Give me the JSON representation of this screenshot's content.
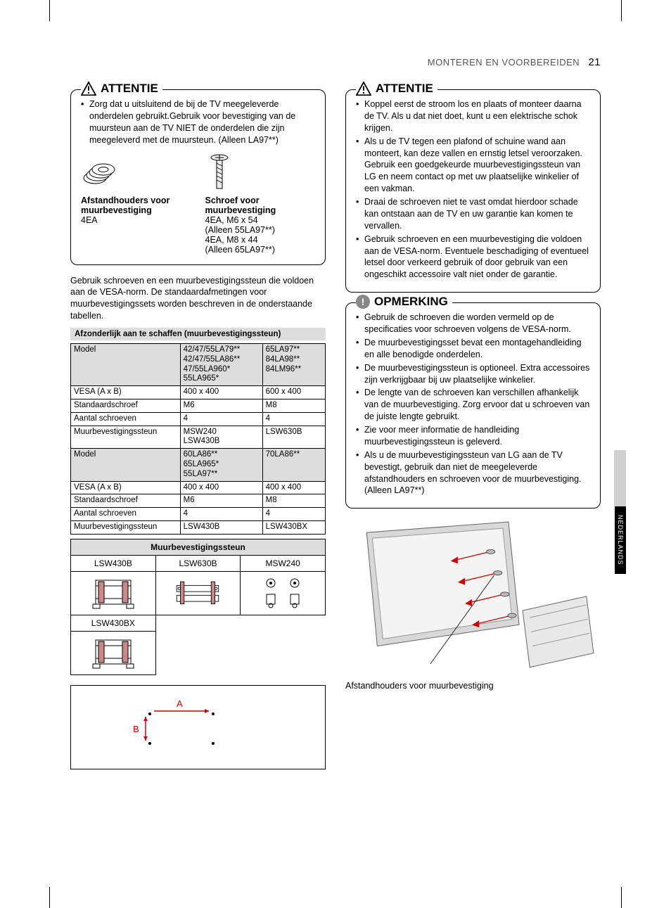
{
  "header": {
    "section": "MONTEREN EN VOORBEREIDEN",
    "page": "21"
  },
  "side_tab": "NEDERLANDS",
  "attentie1": {
    "title": "ATTENTIE",
    "items": [
      "Zorg dat u uitsluitend de bij de TV meegeleverde onderdelen gebruikt.Gebruik voor bevestiging van de muursteun aan de TV NIET de onderdelen die zijn meegeleverd met de muursteun. (Alleen LA97**)"
    ],
    "part1_label": "Afstandhouders voor muurbevestiging",
    "part1_qty": "4EA",
    "part2_label": "Schroef voor muurbevestiging",
    "part2_line1": "4EA, M6 x 54",
    "part2_line2": "(Alleen 55LA97**)",
    "part2_line3": "4EA, M8 x 44",
    "part2_line4": "(Alleen 65LA97**)"
  },
  "para1": "Gebruik schroeven en een muurbevestigingssteun die voldoen aan de VESA-norm. De standaardafmetingen voor muurbevestigingssets worden beschreven in de onderstaande tabellen.",
  "greybar": "Afzonderlijk aan te schaffen (muurbevestigingssteun)",
  "spec_table": {
    "rows": [
      [
        "Model",
        "42/47/55LA79**\n42/47/55LA86**\n47/55LA960*\n55LA965*",
        "65LA97**\n84LA98**\n84LM96**"
      ],
      [
        "VESA (A x B)",
        "400 x 400",
        "600 x 400"
      ],
      [
        "Standaardschroef",
        "M6",
        "M8"
      ],
      [
        "Aantal schroeven",
        "4",
        "4"
      ],
      [
        "Muurbevestigingssteun",
        "MSW240\nLSW430B",
        "LSW630B"
      ],
      [
        "Model",
        "60LA86**\n65LA965*\n55LA97**",
        "70LA86**"
      ],
      [
        "VESA (A x B)",
        "400 x 400",
        "400 x 400"
      ],
      [
        "Standaardschroef",
        "M6",
        "M8"
      ],
      [
        "Aantal schroeven",
        "4",
        "4"
      ],
      [
        "Muurbevestigingssteun",
        "LSW430B",
        "LSW430BX"
      ]
    ],
    "hdr_rows": [
      0,
      5
    ]
  },
  "bracket_table": {
    "title": "Muurbevestigingssteun",
    "cols": [
      "LSW430B",
      "LSW630B",
      "MSW240"
    ],
    "row2": [
      "LSW430BX",
      "",
      ""
    ]
  },
  "ab": {
    "a": "A",
    "b": "B"
  },
  "attentie2": {
    "title": "ATTENTIE",
    "items": [
      "Koppel eerst de stroom los en plaats of monteer daarna de TV. Als u dat niet doet, kunt u een elektrische schok krijgen.",
      "Als u de TV tegen een plafond of schuine wand aan monteert, kan deze vallen en ernstig letsel veroorzaken.\nGebruik een goedgekeurde muurbevestigingssteun van LG en neem contact op met uw plaatselijke winkelier of een vakman.",
      "Draai de schroeven niet te vast omdat hierdoor schade kan ontstaan aan de TV en uw garantie kan komen te vervallen.",
      "Gebruik schroeven en een muurbevestiging die voldoen aan de VESA-norm. Eventuele beschadiging of eventueel letsel door verkeerd gebruik of door gebruik van een ongeschikt accessoire valt niet onder de garantie."
    ]
  },
  "opmerking": {
    "title": "OPMERKING",
    "items": [
      "Gebruik de schroeven die worden vermeld op de specificaties voor schroeven volgens de VESA-norm.",
      "De muurbevestigingsset bevat een montagehandleiding en alle benodigde onderdelen.",
      "De muurbevestigingssteun is optioneel. Extra accessoires zijn verkrijgbaar bij uw plaatselijke winkelier.",
      "De lengte van de schroeven kan verschillen afhankelijk van de muurbevestiging. Zorg ervoor dat u schroeven van de juiste lengte gebruikt.",
      "Zie voor meer informatie de handleiding muurbevestigingssteun is geleverd.",
      "Als u de muurbevestigingssteun van LG aan de TV bevestigt, gebruik dan niet de meegeleverde afstandhouders en schroeven voor de muurbevestiging. (Alleen LA97**)"
    ]
  },
  "mount_caption": "Afstandhouders voor muurbevestiging",
  "colors": {
    "red": "#c00000",
    "grey": "#888888"
  }
}
